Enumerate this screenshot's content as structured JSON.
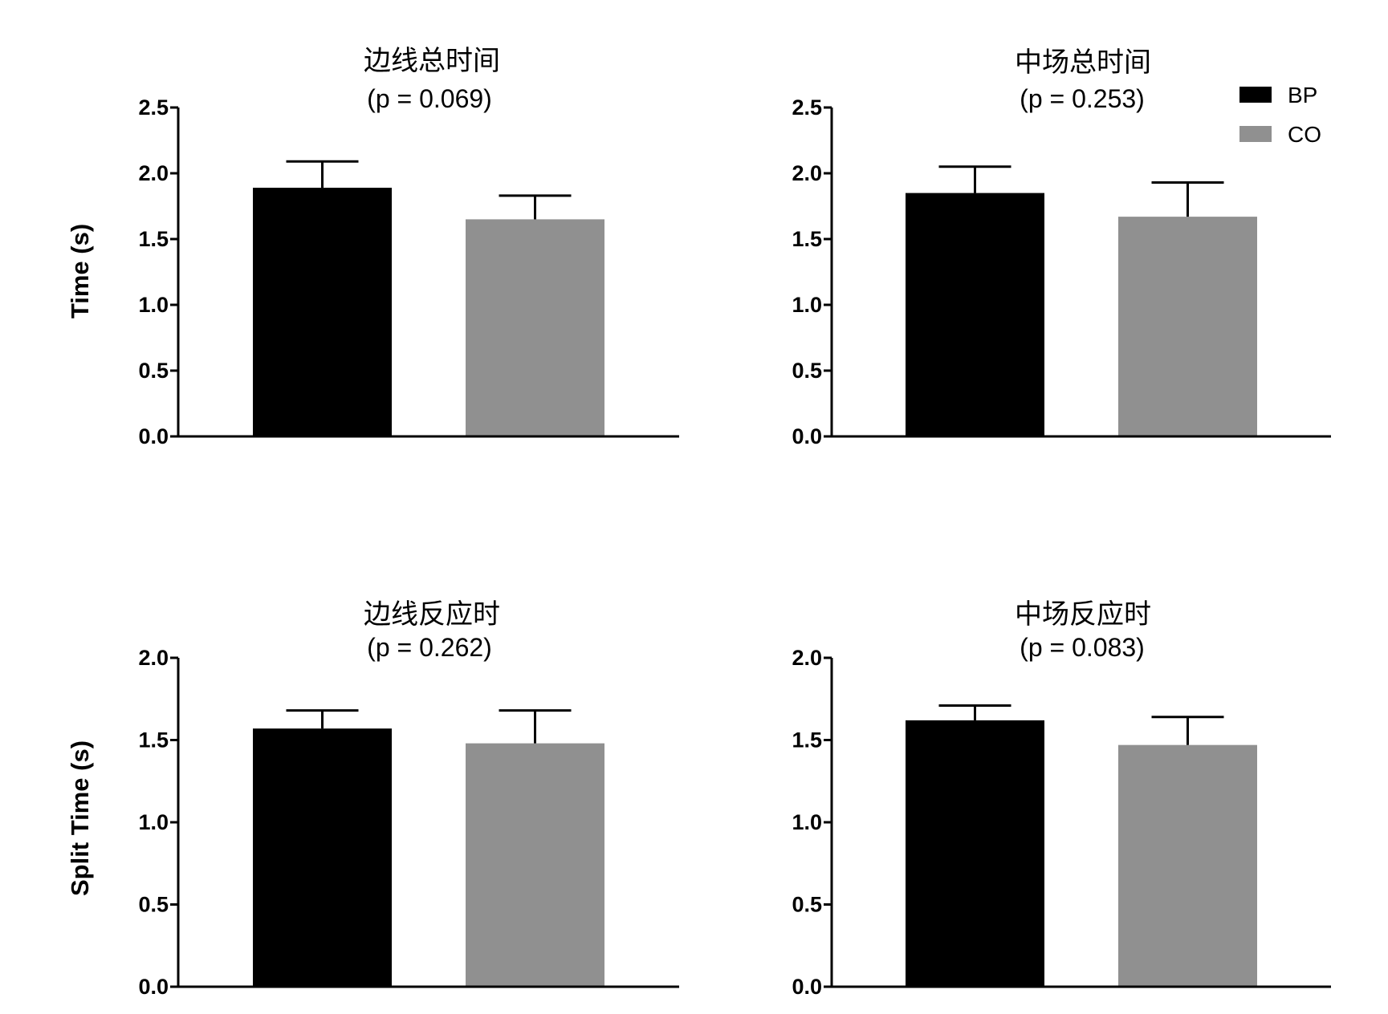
{
  "chart_data": [
    {
      "type": "bar",
      "title": "边线总时间",
      "subtitle": "(p = 0.069)",
      "ylabel": "Time (s)",
      "ylim": [
        0,
        2.5
      ],
      "yticks": [
        "0.0",
        "0.5",
        "1.0",
        "1.5",
        "2.0",
        "2.5"
      ],
      "series": [
        {
          "name": "BP",
          "value": 1.89,
          "error": 0.2,
          "color": "#000000"
        },
        {
          "name": "CO",
          "value": 1.65,
          "error": 0.18,
          "color": "#909090"
        }
      ]
    },
    {
      "type": "bar",
      "title": "中场总时间",
      "subtitle": "(p = 0.253)",
      "ylabel": "",
      "ylim": [
        0,
        2.5
      ],
      "yticks": [
        "0.0",
        "0.5",
        "1.0",
        "1.5",
        "2.0",
        "2.5"
      ],
      "series": [
        {
          "name": "BP",
          "value": 1.85,
          "error": 0.2,
          "color": "#000000"
        },
        {
          "name": "CO",
          "value": 1.67,
          "error": 0.26,
          "color": "#909090"
        }
      ]
    },
    {
      "type": "bar",
      "title": "边线反应时",
      "subtitle": "(p = 0.262)",
      "ylabel": "Split  Time (s)",
      "ylim": [
        0,
        2.0
      ],
      "yticks": [
        "0.0",
        "0.5",
        "1.0",
        "1.5",
        "2.0"
      ],
      "series": [
        {
          "name": "BP",
          "value": 1.57,
          "error": 0.11,
          "color": "#000000"
        },
        {
          "name": "CO",
          "value": 1.48,
          "error": 0.2,
          "color": "#909090"
        }
      ]
    },
    {
      "type": "bar",
      "title": "中场反应时",
      "subtitle": "(p = 0.083)",
      "ylabel": "",
      "ylim": [
        0,
        2.0
      ],
      "yticks": [
        "0.0",
        "0.5",
        "1.0",
        "1.5",
        "2.0"
      ],
      "series": [
        {
          "name": "BP",
          "value": 1.62,
          "error": 0.09,
          "color": "#000000"
        },
        {
          "name": "CO",
          "value": 1.47,
          "error": 0.17,
          "color": "#909090"
        }
      ]
    }
  ],
  "legend": {
    "placement": "top-right",
    "items": [
      {
        "label": "BP",
        "color": "#000000"
      },
      {
        "label": "CO",
        "color": "#909090"
      }
    ]
  }
}
